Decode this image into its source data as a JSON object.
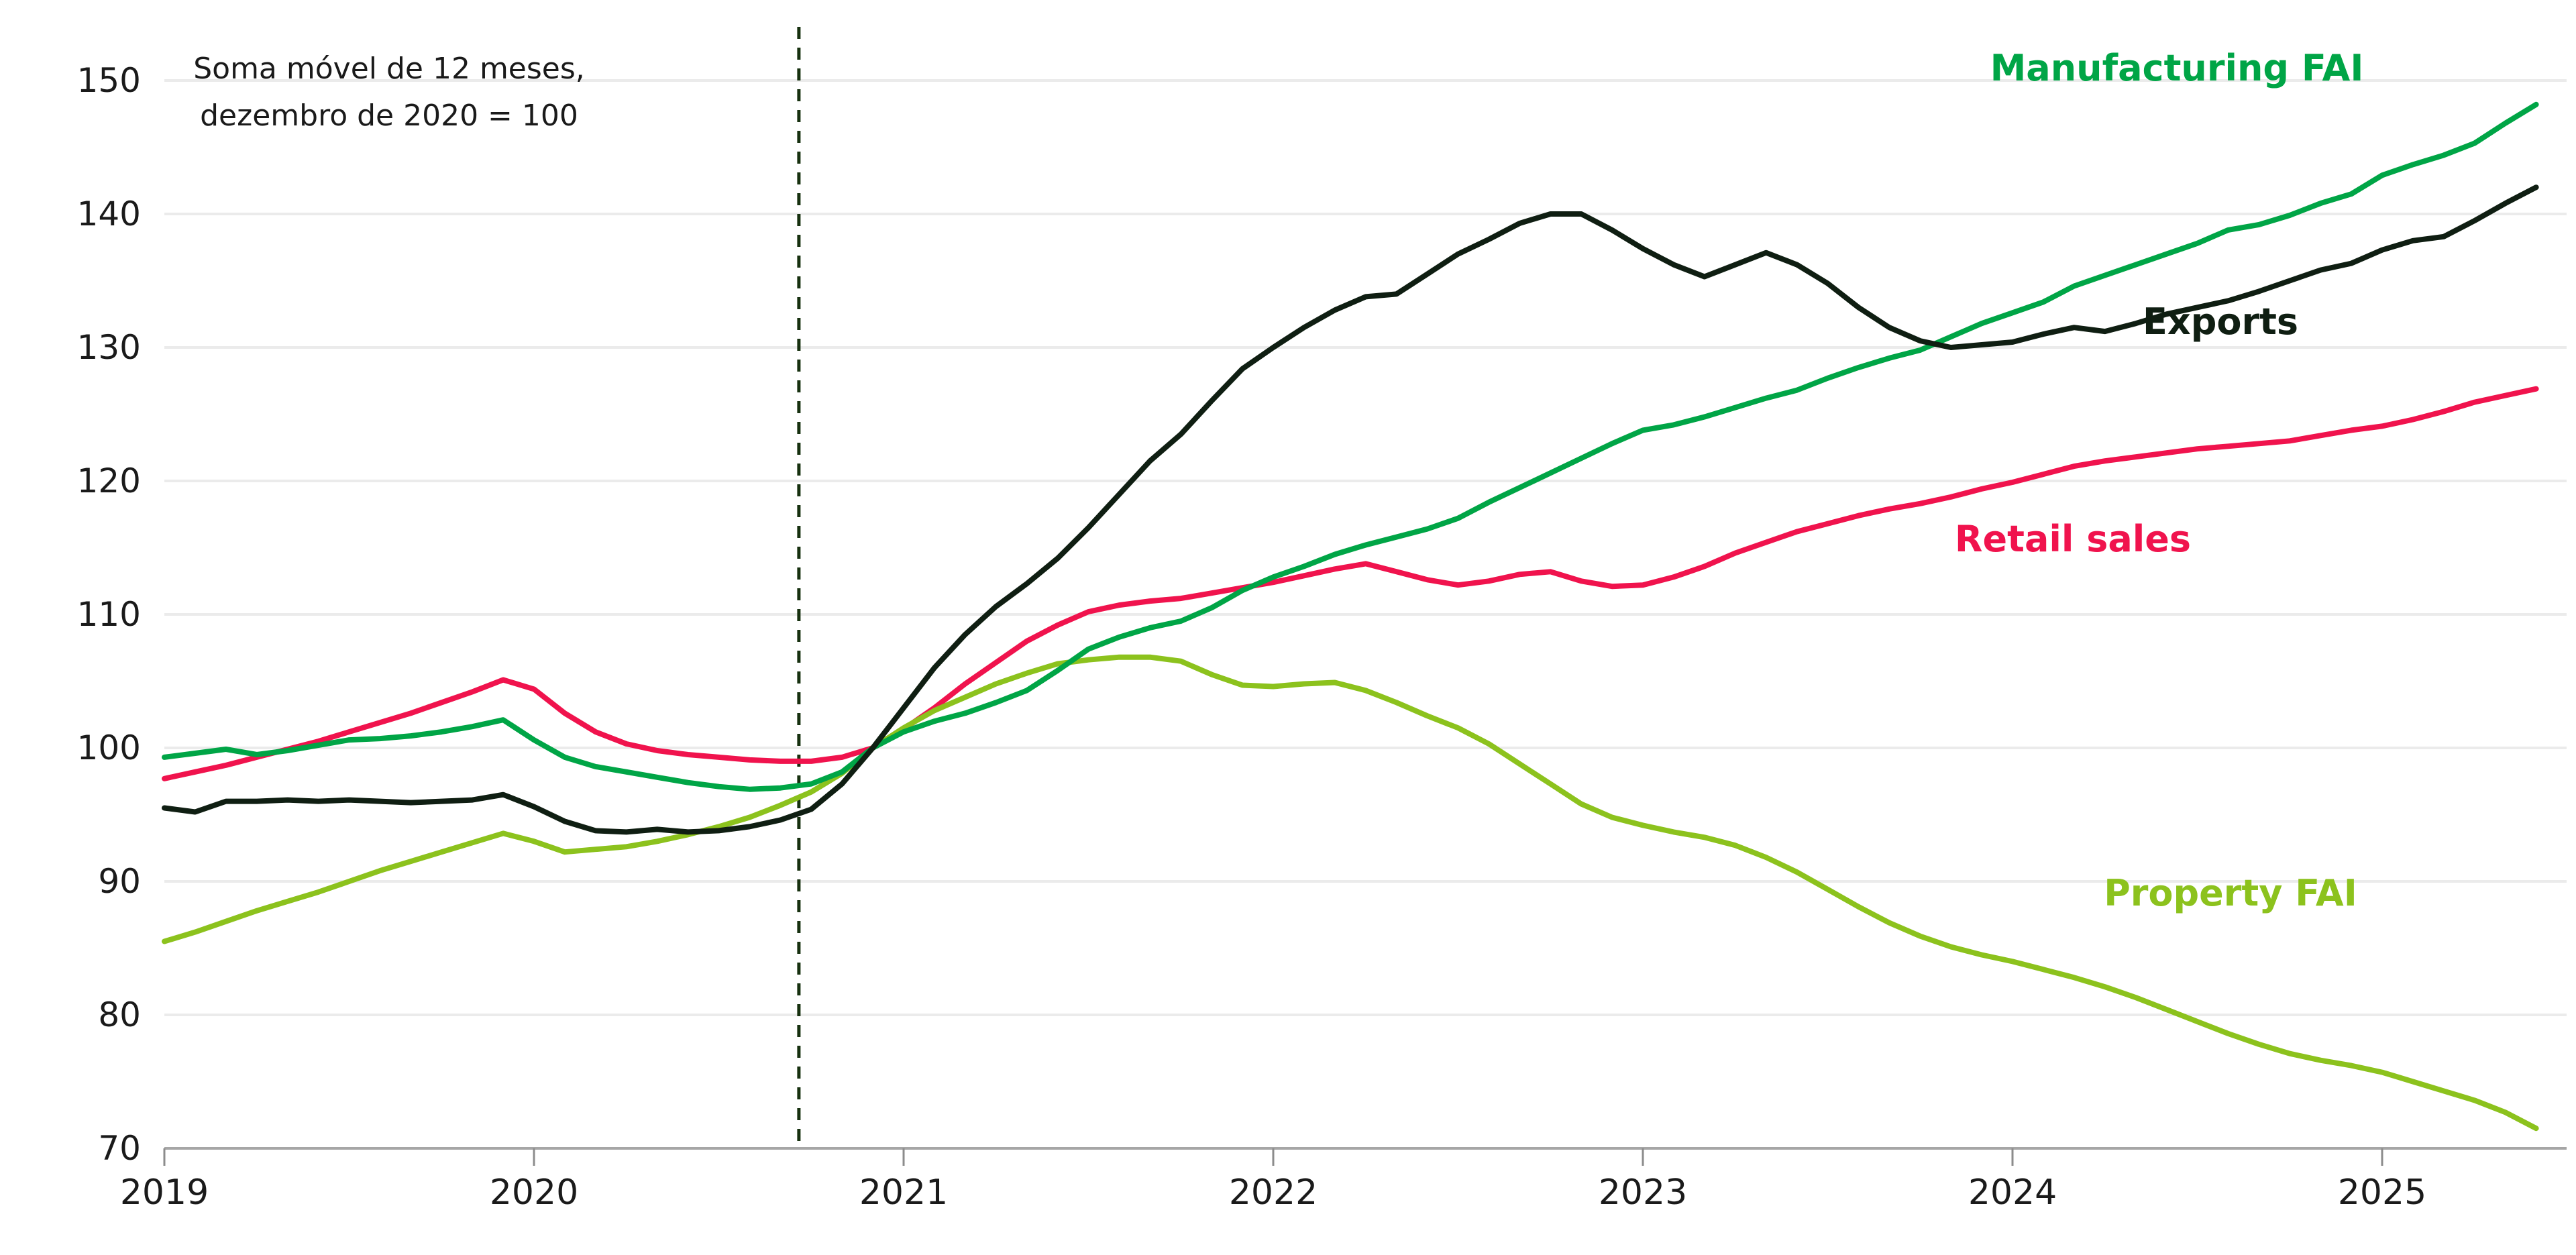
{
  "annotation": {
    "line1": "Soma móvel de 12 meses,",
    "line2": "dezembro de 2020 = 100"
  },
  "style": {
    "background": "#ffffff",
    "gridline_color": "#EBEBEB",
    "axis_line_color": "#A6A6A6",
    "tick_color": "#8C8C8C",
    "text_color": "#1a1a1a",
    "vline_color": "#16300F"
  },
  "chart_data": {
    "type": "line",
    "title": "",
    "subtitle": "Soma móvel de 12 meses, dezembro de 2020 = 100",
    "xlabel": "",
    "ylabel": "",
    "ylim": [
      70,
      150
    ],
    "yticks": [
      70,
      80,
      90,
      100,
      110,
      120,
      130,
      140,
      150
    ],
    "x_tick_years": [
      "2019",
      "2020",
      "2021",
      "2022",
      "2023",
      "2024",
      "2025"
    ],
    "x_start": "2019-01",
    "x_end": "2025-06",
    "frequency": "monthly",
    "grid": true,
    "legend_position": "inline-labels",
    "vline": {
      "label": "policy-marker",
      "date": "2020-09",
      "month_index": 20.6,
      "style": "dashed"
    },
    "series": [
      {
        "name": "Retail sales",
        "label": "Retail sales",
        "color": "#F0134D",
        "values": [
          97.7,
          98.2,
          98.7,
          99.3,
          99.9,
          100.5,
          101.2,
          101.9,
          102.6,
          103.4,
          104.2,
          105.1,
          104.4,
          102.6,
          101.2,
          100.3,
          99.8,
          99.5,
          99.3,
          99.1,
          99.0,
          99.0,
          99.3,
          100.0,
          101.4,
          103.0,
          104.8,
          106.4,
          108.0,
          109.2,
          110.2,
          110.7,
          111.0,
          111.2,
          111.6,
          112.0,
          112.4,
          112.9,
          113.4,
          113.8,
          113.2,
          112.6,
          112.2,
          112.5,
          113.0,
          113.2,
          112.5,
          112.1,
          112.2,
          112.8,
          113.6,
          114.6,
          115.4,
          116.2,
          116.8,
          117.4,
          117.9,
          118.3,
          118.8,
          119.4,
          119.9,
          120.5,
          121.1,
          121.5,
          121.8,
          122.1,
          122.4,
          122.6,
          122.8,
          123.0,
          123.4,
          123.8,
          124.1,
          124.6,
          125.2,
          125.9,
          126.4,
          126.9
        ]
      },
      {
        "name": "Property FAI",
        "label": "Property FAI",
        "color": "#8CC21D",
        "values": [
          85.5,
          86.2,
          87.0,
          87.8,
          88.5,
          89.2,
          90.0,
          90.8,
          91.5,
          92.2,
          92.9,
          93.6,
          93.0,
          92.2,
          92.4,
          92.6,
          93.0,
          93.5,
          94.1,
          94.8,
          95.7,
          96.7,
          98.1,
          100.0,
          101.5,
          102.8,
          103.8,
          104.8,
          105.6,
          106.3,
          106.6,
          106.8,
          106.8,
          106.5,
          105.5,
          104.7,
          104.6,
          104.8,
          104.9,
          104.3,
          103.4,
          102.4,
          101.5,
          100.3,
          98.8,
          97.3,
          95.8,
          94.8,
          94.2,
          93.7,
          93.3,
          92.7,
          91.8,
          90.7,
          89.4,
          88.1,
          86.9,
          85.9,
          85.1,
          84.5,
          84.0,
          83.4,
          82.8,
          82.1,
          81.3,
          80.4,
          79.5,
          78.6,
          77.8,
          77.1,
          76.6,
          76.2,
          75.7,
          75.0,
          74.3,
          73.6,
          72.7,
          71.5
        ]
      },
      {
        "name": "Manufacturing FAI",
        "label": "Manufacturing FAI",
        "color": "#00A546",
        "values": [
          99.3,
          99.6,
          99.9,
          99.5,
          99.8,
          100.2,
          100.6,
          100.7,
          100.9,
          101.2,
          101.6,
          102.1,
          100.6,
          99.3,
          98.6,
          98.2,
          97.8,
          97.4,
          97.1,
          96.9,
          97.0,
          97.3,
          98.2,
          100.0,
          101.2,
          102.0,
          102.6,
          103.4,
          104.3,
          105.8,
          107.4,
          108.3,
          109.0,
          109.5,
          110.5,
          111.8,
          112.8,
          113.6,
          114.5,
          115.2,
          115.8,
          116.4,
          117.2,
          118.4,
          119.5,
          120.6,
          121.7,
          122.8,
          123.8,
          124.2,
          124.8,
          125.5,
          126.2,
          126.8,
          127.7,
          128.5,
          129.2,
          129.8,
          130.8,
          131.8,
          132.6,
          133.4,
          134.6,
          135.4,
          136.2,
          137.0,
          137.8,
          138.8,
          139.2,
          139.9,
          140.8,
          141.5,
          142.9,
          143.7,
          144.4,
          145.3,
          146.8,
          148.2
        ]
      },
      {
        "name": "Exports",
        "label": "Exports",
        "color": "#0F1E12",
        "values": [
          95.5,
          95.2,
          96.0,
          96.0,
          96.1,
          96.0,
          96.1,
          96.0,
          95.9,
          96.0,
          96.1,
          96.5,
          95.6,
          94.5,
          93.8,
          93.7,
          93.9,
          93.7,
          93.8,
          94.1,
          94.6,
          95.4,
          97.3,
          100.0,
          103.0,
          106.0,
          108.5,
          110.6,
          112.3,
          114.2,
          116.5,
          119.0,
          121.5,
          123.5,
          126.0,
          128.4,
          130.0,
          131.5,
          132.8,
          133.8,
          134.0,
          135.5,
          137.0,
          138.1,
          139.3,
          140.0,
          140.0,
          138.8,
          137.4,
          136.2,
          135.3,
          136.2,
          137.1,
          136.2,
          134.8,
          133.0,
          131.5,
          130.5,
          130.0,
          130.2,
          130.4,
          131.0,
          131.5,
          131.2,
          131.8,
          132.5,
          133.0,
          133.5,
          134.2,
          135.0,
          135.8,
          136.3,
          137.3,
          138.0,
          138.3,
          139.5,
          140.8,
          142.0
        ]
      }
    ]
  }
}
